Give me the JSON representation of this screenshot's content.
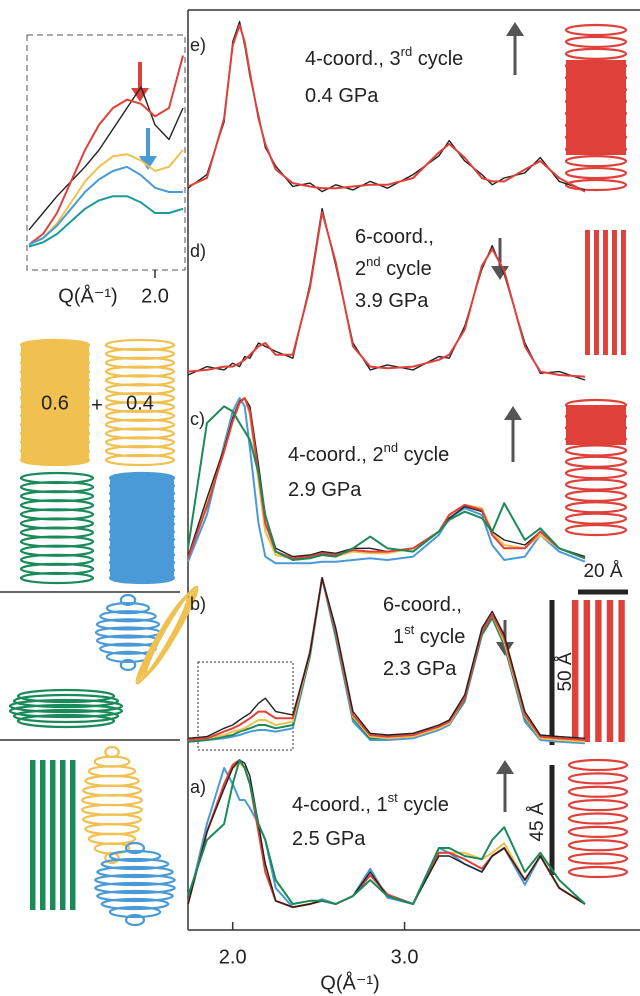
{
  "chart_data": [
    {
      "type": "line",
      "panel_label": "e)",
      "annotation": [
        [
          "4-coord., 3",
          {
            "sup": "rd"
          },
          " cycle"
        ],
        [
          "0.4 GPa"
        ]
      ],
      "x": [
        1.74,
        1.85,
        1.95,
        2.0,
        2.04,
        2.07,
        2.1,
        2.15,
        2.19,
        2.25,
        2.35,
        2.45,
        2.52,
        2.6,
        2.7,
        2.8,
        2.9,
        3.05,
        3.2,
        3.26,
        3.35,
        3.45,
        3.51,
        3.58,
        3.7,
        3.79,
        3.9,
        4.05
      ],
      "xlim": [
        1.74,
        4.37
      ],
      "ylim": [
        0,
        1
      ],
      "series": [
        {
          "color": "#222222",
          "values": [
            0.04,
            0.12,
            0.43,
            0.9,
            1.02,
            0.88,
            0.7,
            0.47,
            0.28,
            0.17,
            0.05,
            0.07,
            0.02,
            0.06,
            0.03,
            0.08,
            0.04,
            0.12,
            0.23,
            0.32,
            0.2,
            0.12,
            0.06,
            0.1,
            0.13,
            0.22,
            0.08,
            0.03
          ]
        },
        {
          "color": "#e0403a",
          "values": [
            0.05,
            0.1,
            0.45,
            0.88,
            1.0,
            0.9,
            0.72,
            0.45,
            0.3,
            0.15,
            0.07,
            0.05,
            0.04,
            0.04,
            0.05,
            0.06,
            0.06,
            0.1,
            0.25,
            0.3,
            0.22,
            0.1,
            0.08,
            0.08,
            0.15,
            0.2,
            0.1,
            0.02
          ]
        }
      ]
    },
    {
      "type": "line",
      "panel_label": "d)",
      "annotation": [
        [
          "6-coord.,"
        ],
        [
          "2",
          {
            "sup": "nd"
          },
          " cycle"
        ],
        [
          "3.9 GPa"
        ]
      ],
      "x": [
        1.74,
        1.85,
        1.95,
        2.0,
        2.04,
        2.07,
        2.1,
        2.15,
        2.19,
        2.25,
        2.35,
        2.45,
        2.52,
        2.6,
        2.7,
        2.8,
        2.9,
        3.05,
        3.2,
        3.26,
        3.35,
        3.45,
        3.51,
        3.58,
        3.7,
        3.79,
        3.9,
        4.05
      ],
      "xlim": [
        1.74,
        4.37
      ],
      "ylim": [
        0,
        1
      ],
      "series": [
        {
          "color": "#222222",
          "values": [
            0.03,
            0.08,
            0.06,
            0.1,
            0.08,
            0.14,
            0.13,
            0.22,
            0.2,
            0.17,
            0.13,
            0.57,
            1.02,
            0.68,
            0.22,
            0.06,
            0.09,
            0.06,
            0.14,
            0.13,
            0.32,
            0.66,
            0.8,
            0.63,
            0.22,
            0.04,
            0.05,
            0.0
          ]
        },
        {
          "color": "#e0403a",
          "values": [
            0.05,
            0.06,
            0.08,
            0.08,
            0.1,
            0.12,
            0.15,
            0.2,
            0.22,
            0.15,
            0.15,
            0.55,
            1.0,
            0.7,
            0.2,
            0.08,
            0.07,
            0.08,
            0.12,
            0.15,
            0.3,
            0.68,
            0.78,
            0.65,
            0.2,
            0.05,
            0.03,
            0.02
          ]
        }
      ]
    },
    {
      "type": "line",
      "panel_label": "c)",
      "annotation": [
        [
          "4-coord., 2",
          {
            "sup": "nd"
          },
          " cycle"
        ],
        [
          "2.9 GPa"
        ]
      ],
      "x": [
        1.74,
        1.85,
        1.95,
        2.0,
        2.04,
        2.07,
        2.1,
        2.15,
        2.19,
        2.25,
        2.35,
        2.45,
        2.52,
        2.6,
        2.7,
        2.8,
        2.9,
        3.05,
        3.2,
        3.26,
        3.35,
        3.45,
        3.51,
        3.58,
        3.7,
        3.79,
        3.9,
        4.05
      ],
      "xlim": [
        1.74,
        4.37
      ],
      "ylim": [
        0,
        1
      ],
      "series": [
        {
          "color": "#4a9ad8",
          "values": [
            0.02,
            0.3,
            0.72,
            0.92,
            1.0,
            0.95,
            0.7,
            0.25,
            0.05,
            0.01,
            0.01,
            0.01,
            0.02,
            0.02,
            0.03,
            0.04,
            0.03,
            0.05,
            0.18,
            0.28,
            0.34,
            0.3,
            0.12,
            0.03,
            0.05,
            0.18,
            0.08,
            0.02
          ]
        },
        {
          "color": "#f0c050",
          "values": [
            0.04,
            0.38,
            0.7,
            0.88,
            0.98,
            1.0,
            0.9,
            0.5,
            0.2,
            0.06,
            0.04,
            0.05,
            0.06,
            0.05,
            0.08,
            0.07,
            0.07,
            0.1,
            0.2,
            0.3,
            0.36,
            0.34,
            0.2,
            0.12,
            0.1,
            0.18,
            0.1,
            0.04
          ]
        },
        {
          "color": "#222222",
          "values": [
            0.05,
            0.4,
            0.7,
            0.88,
            0.98,
            1.0,
            0.95,
            0.6,
            0.3,
            0.1,
            0.05,
            0.06,
            0.08,
            0.07,
            0.1,
            0.1,
            0.08,
            0.1,
            0.2,
            0.28,
            0.35,
            0.32,
            0.2,
            0.15,
            0.12,
            0.2,
            0.1,
            0.05
          ]
        },
        {
          "color": "#e0403a",
          "values": [
            0.04,
            0.35,
            0.68,
            0.86,
            0.97,
            1.0,
            0.92,
            0.55,
            0.25,
            0.08,
            0.04,
            0.05,
            0.07,
            0.06,
            0.09,
            0.08,
            0.08,
            0.1,
            0.2,
            0.3,
            0.36,
            0.33,
            0.18,
            0.1,
            0.1,
            0.2,
            0.1,
            0.04
          ]
        },
        {
          "color": "#1a8a5a",
          "values": [
            0.1,
            0.85,
            0.95,
            0.92,
            0.85,
            0.8,
            0.75,
            0.55,
            0.3,
            0.08,
            0.03,
            0.04,
            0.06,
            0.05,
            0.1,
            0.17,
            0.1,
            0.08,
            0.2,
            0.27,
            0.32,
            0.28,
            0.2,
            0.37,
            0.15,
            0.22,
            0.1,
            0.04
          ]
        }
      ]
    },
    {
      "type": "line",
      "panel_label": "b)",
      "annotation": [
        [
          "6-coord.,"
        ],
        [
          "1",
          {
            "sup": "st"
          },
          " cycle"
        ],
        [
          "2.3 GPa"
        ]
      ],
      "x": [
        1.74,
        1.85,
        1.95,
        2.0,
        2.04,
        2.07,
        2.1,
        2.15,
        2.19,
        2.25,
        2.35,
        2.45,
        2.52,
        2.6,
        2.7,
        2.8,
        2.9,
        3.05,
        3.2,
        3.26,
        3.35,
        3.45,
        3.51,
        3.58,
        3.7,
        3.79,
        3.9,
        4.05
      ],
      "xlim": [
        1.74,
        4.37
      ],
      "ylim": [
        0,
        1
      ],
      "series": [
        {
          "color": "#4a9ad8",
          "values": [
            0.02,
            0.03,
            0.04,
            0.05,
            0.06,
            0.07,
            0.08,
            0.09,
            0.09,
            0.08,
            0.1,
            0.53,
            1.0,
            0.64,
            0.14,
            0.03,
            0.03,
            0.04,
            0.09,
            0.12,
            0.26,
            0.66,
            0.77,
            0.6,
            0.14,
            0.03,
            0.02,
            0.01
          ]
        },
        {
          "color": "#1a8a5a",
          "values": [
            0.02,
            0.03,
            0.05,
            0.06,
            0.08,
            0.09,
            0.1,
            0.12,
            0.12,
            0.1,
            0.12,
            0.54,
            1.0,
            0.66,
            0.16,
            0.04,
            0.04,
            0.05,
            0.1,
            0.13,
            0.27,
            0.66,
            0.76,
            0.6,
            0.16,
            0.04,
            0.03,
            0.02
          ]
        },
        {
          "color": "#f0c050",
          "values": [
            0.03,
            0.04,
            0.06,
            0.08,
            0.09,
            0.1,
            0.12,
            0.15,
            0.15,
            0.12,
            0.14,
            0.55,
            1.0,
            0.68,
            0.17,
            0.05,
            0.04,
            0.05,
            0.1,
            0.13,
            0.28,
            0.68,
            0.78,
            0.62,
            0.17,
            0.04,
            0.03,
            0.02
          ]
        },
        {
          "color": "#e0403a",
          "values": [
            0.03,
            0.04,
            0.08,
            0.1,
            0.12,
            0.14,
            0.16,
            0.2,
            0.2,
            0.16,
            0.16,
            0.56,
            1.0,
            0.68,
            0.18,
            0.06,
            0.05,
            0.06,
            0.11,
            0.14,
            0.28,
            0.68,
            0.78,
            0.64,
            0.18,
            0.05,
            0.04,
            0.03
          ]
        },
        {
          "color": "#222222",
          "values": [
            0.04,
            0.05,
            0.1,
            0.12,
            0.15,
            0.17,
            0.19,
            0.25,
            0.28,
            0.2,
            0.18,
            0.55,
            1.0,
            0.7,
            0.2,
            0.07,
            0.06,
            0.07,
            0.12,
            0.15,
            0.3,
            0.7,
            0.8,
            0.66,
            0.2,
            0.06,
            0.05,
            0.04
          ]
        }
      ]
    },
    {
      "type": "line",
      "panel_label": "a)",
      "annotation": [
        [
          "4-coord., 1",
          {
            "sup": "st"
          },
          " cycle"
        ],
        [
          "2.5 GPa"
        ]
      ],
      "x": [
        1.74,
        1.85,
        1.95,
        2.0,
        2.04,
        2.07,
        2.1,
        2.15,
        2.19,
        2.25,
        2.35,
        2.45,
        2.52,
        2.6,
        2.7,
        2.8,
        2.9,
        3.05,
        3.2,
        3.26,
        3.35,
        3.45,
        3.51,
        3.58,
        3.7,
        3.79,
        3.9,
        4.05
      ],
      "xlim": [
        1.74,
        4.37
      ],
      "ylim": [
        0,
        1
      ],
      "xticks": [
        {
          "value": 2,
          "label": "2.0"
        },
        {
          "value": 3,
          "label": "3.0"
        }
      ],
      "xlabel": "Q(Å⁻¹)",
      "series": [
        {
          "color": "#4a9ad8",
          "values": [
            0.1,
            0.6,
            0.95,
            0.85,
            0.75,
            0.75,
            0.7,
            0.6,
            0.5,
            0.2,
            0.08,
            0.1,
            0.13,
            0.1,
            0.15,
            0.32,
            0.14,
            0.1,
            0.45,
            0.42,
            0.35,
            0.3,
            0.4,
            0.45,
            0.22,
            0.4,
            0.2,
            0.1
          ]
        },
        {
          "color": "#f0c050",
          "values": [
            0.1,
            0.55,
            0.83,
            0.95,
            0.98,
            0.95,
            0.85,
            0.55,
            0.35,
            0.12,
            0.08,
            0.1,
            0.12,
            0.1,
            0.15,
            0.28,
            0.16,
            0.1,
            0.42,
            0.42,
            0.42,
            0.38,
            0.42,
            0.48,
            0.25,
            0.4,
            0.2,
            0.1
          ]
        },
        {
          "color": "#e0403a",
          "values": [
            0.1,
            0.55,
            0.85,
            0.97,
            1.0,
            0.95,
            0.85,
            0.55,
            0.3,
            0.12,
            0.08,
            0.1,
            0.12,
            0.1,
            0.15,
            0.28,
            0.16,
            0.1,
            0.42,
            0.42,
            0.38,
            0.32,
            0.4,
            0.45,
            0.25,
            0.4,
            0.2,
            0.1
          ]
        },
        {
          "color": "#222222",
          "values": [
            0.1,
            0.55,
            0.82,
            0.95,
            1.0,
            0.98,
            0.9,
            0.6,
            0.35,
            0.12,
            0.08,
            0.1,
            0.12,
            0.1,
            0.15,
            0.3,
            0.15,
            0.1,
            0.4,
            0.4,
            0.35,
            0.3,
            0.4,
            0.45,
            0.25,
            0.4,
            0.2,
            0.1
          ]
        },
        {
          "color": "#1a8a5a",
          "values": [
            0.15,
            0.5,
            0.6,
            0.85,
            1.0,
            0.95,
            0.85,
            0.6,
            0.5,
            0.25,
            0.1,
            0.12,
            0.12,
            0.1,
            0.15,
            0.25,
            0.15,
            0.1,
            0.45,
            0.45,
            0.4,
            0.38,
            0.5,
            0.58,
            0.3,
            0.42,
            0.25,
            0.1
          ]
        }
      ]
    },
    {
      "type": "line",
      "x": [
        1.55,
        1.6,
        1.65,
        1.7,
        1.75,
        1.8,
        1.85,
        1.9,
        1.95,
        2.0,
        2.05,
        2.1
      ],
      "xlim": [
        1.55,
        2.1
      ],
      "ylim": [
        0,
        1
      ],
      "xticks": [
        {
          "value": 2,
          "label": "2.0"
        }
      ],
      "xlabel": "Q(Å⁻¹)",
      "series": [
        {
          "color": "#222222",
          "values": [
            0.12,
            0.2,
            0.28,
            0.35,
            0.42,
            0.5,
            0.6,
            0.7,
            0.8,
            0.62,
            0.55,
            0.7
          ]
        },
        {
          "color": "#e0403a",
          "values": [
            0.05,
            0.1,
            0.2,
            0.35,
            0.5,
            0.62,
            0.7,
            0.74,
            0.72,
            0.66,
            0.7,
            0.95
          ]
        },
        {
          "color": "#f0c050",
          "values": [
            0.05,
            0.08,
            0.15,
            0.25,
            0.35,
            0.42,
            0.47,
            0.48,
            0.45,
            0.4,
            0.42,
            0.5
          ]
        },
        {
          "color": "#4a9ad8",
          "values": [
            0.05,
            0.08,
            0.14,
            0.22,
            0.3,
            0.36,
            0.4,
            0.42,
            0.38,
            0.32,
            0.3,
            0.3
          ]
        },
        {
          "color": "#1a9a9a",
          "values": [
            0.04,
            0.06,
            0.1,
            0.16,
            0.22,
            0.26,
            0.28,
            0.28,
            0.25,
            0.2,
            0.2,
            0.22
          ]
        }
      ]
    }
  ],
  "figure_labels": {
    "fraction_filled": "0.6",
    "plus": "+",
    "fraction_open": "0.4",
    "width": "20 Å",
    "length_b": "50 Å",
    "length_a": "45 Å"
  }
}
